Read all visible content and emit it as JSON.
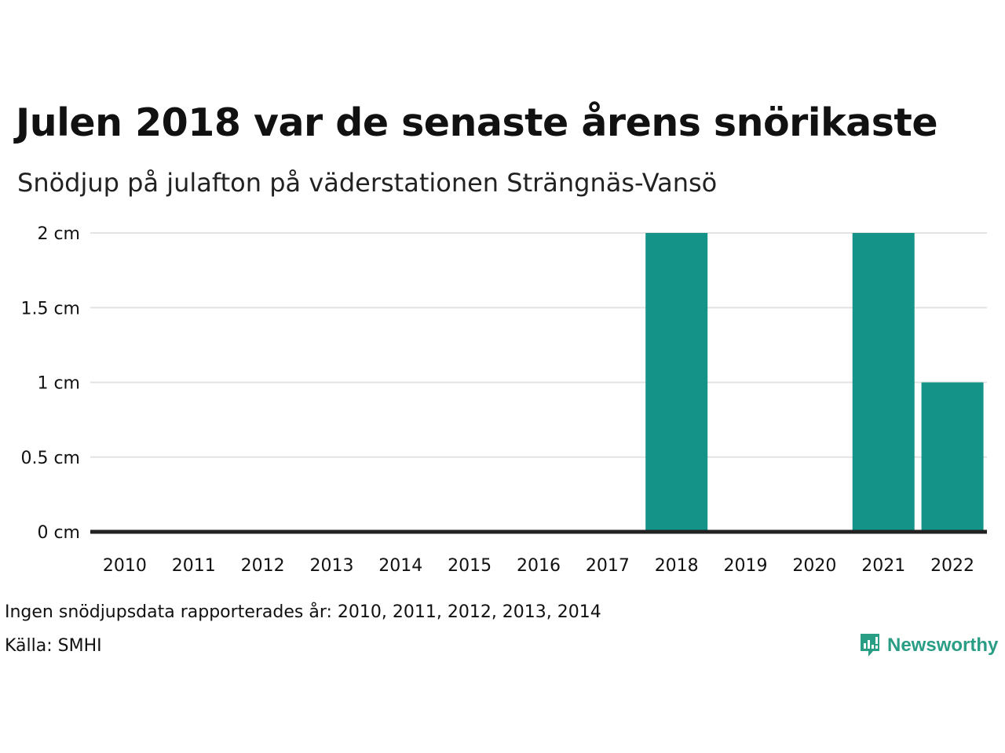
{
  "title": "Julen 2018 var de senaste årens snörikaste",
  "subtitle": "Snödjup på julafton på väderstationen Strängnäs-Vansö",
  "note": "Ingen snödjupsdata rapporterades år: 2010, 2011, 2012, 2013, 2014",
  "source": "Källa: SMHI",
  "logo_text": "Newsworthy",
  "logo_icon": "newsworthy-chart-bubble-icon",
  "colors": {
    "bar": "#149488",
    "grid": "#e3e3e3",
    "baseline": "#222222",
    "brand": "#2a9d85"
  },
  "chart_data": {
    "type": "bar",
    "categories": [
      "2010",
      "2011",
      "2012",
      "2013",
      "2014",
      "2015",
      "2016",
      "2017",
      "2018",
      "2019",
      "2020",
      "2021",
      "2022"
    ],
    "values": [
      null,
      null,
      null,
      null,
      null,
      0,
      0,
      0,
      2,
      0,
      0,
      2,
      1
    ],
    "ylim": [
      0,
      2
    ],
    "yticks": [
      0,
      0.5,
      1,
      1.5,
      2
    ],
    "ytick_labels": [
      "0 cm",
      "0.5 cm",
      "1 cm",
      "1.5 cm",
      "2 cm"
    ],
    "grid": true,
    "xlabel": "",
    "ylabel": ""
  }
}
